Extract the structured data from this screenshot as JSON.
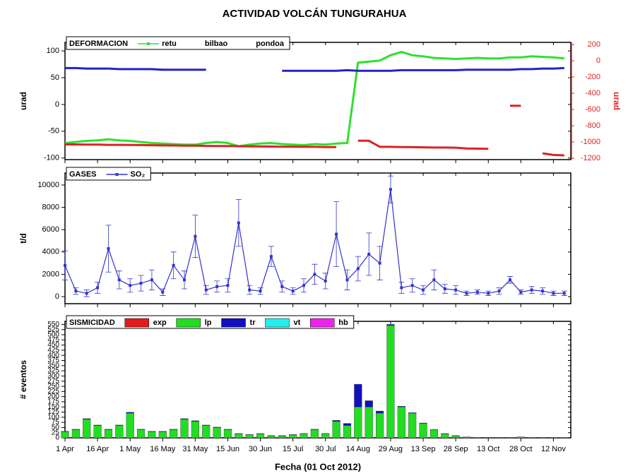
{
  "title": "ACTIVIDAD VOLCÁN TUNGURAHUA",
  "x_label": "Fecha (01 Oct 2012)",
  "chart_data": [
    {
      "type": "line",
      "title": "DEFORMACION",
      "y_label": "urad",
      "y2_label": "urad",
      "legend": "upper left",
      "x": [
        "1 Apr",
        "6 Apr",
        "11 Apr",
        "16 Apr",
        "21 Apr",
        "26 Apr",
        "1 May",
        "6 May",
        "11 May",
        "16 May",
        "21 May",
        "26 May",
        "31 May",
        "5 Jun",
        "10 Jun",
        "15 Jun",
        "20 Jun",
        "25 Jun",
        "30 Jun",
        "5 Jul",
        "10 Jul",
        "15 Jul",
        "20 Jul",
        "25 Jul",
        "30 Jul",
        "4 Aug",
        "9 Aug",
        "14 Aug",
        "19 Aug",
        "24 Aug",
        "29 Aug",
        "3 Sep",
        "8 Sep",
        "13 Sep",
        "18 Sep",
        "23 Sep",
        "28 Sep",
        "3 Oct",
        "8 Oct",
        "13 Oct",
        "18 Oct",
        "23 Oct",
        "28 Oct",
        "2 Nov",
        "7 Nov",
        "12 Nov",
        "17 Nov"
      ],
      "xlim": [
        "1 Apr",
        "20 Nov"
      ],
      "ylim": [
        -103,
        116
      ],
      "yticks": [
        -100,
        -50,
        0,
        50,
        100
      ],
      "y2lim": [
        -1217,
        226
      ],
      "y2ticks": [
        -1200,
        -1000,
        -800,
        -600,
        -400,
        -200,
        0,
        200
      ],
      "series": [
        {
          "name": "retu",
          "color": "#2ee02e",
          "values": [
            -72,
            -70,
            -68,
            -67,
            -65,
            -67,
            -68,
            -70,
            -72,
            -73,
            -74,
            -75,
            -75,
            -72,
            -70,
            -72,
            -78,
            -75,
            -73,
            -72,
            -74,
            -75,
            -76,
            -74,
            -75,
            -73,
            -72,
            78,
            80,
            82,
            92,
            98,
            92,
            90,
            87,
            86,
            85,
            86,
            87,
            86,
            86,
            88,
            88,
            90,
            89,
            88,
            86
          ]
        },
        {
          "name": "bilbao",
          "color": "#2222cc",
          "values": [
            68,
            68,
            67,
            67,
            67,
            66,
            66,
            66,
            66,
            65,
            65,
            65,
            65,
            65,
            null,
            null,
            null,
            null,
            null,
            null,
            63,
            63,
            63,
            63,
            63,
            63,
            64,
            63,
            63,
            63,
            63,
            64,
            64,
            64,
            64,
            64,
            64,
            65,
            65,
            65,
            65,
            65,
            66,
            66,
            67,
            67,
            68
          ]
        },
        {
          "name": "pondoa",
          "color": "#dd2222",
          "axis": "y2",
          "values": [
            -1030,
            -1030,
            -1032,
            -1033,
            -1035,
            -1035,
            -1036,
            -1038,
            -1040,
            -1042,
            -1043,
            -1045,
            -1046,
            -1048,
            -1050,
            -1050,
            -1052,
            -1054,
            -1055,
            -1056,
            -1058,
            -1058,
            -1060,
            -1060,
            -1062,
            -1062,
            null,
            -985,
            -985,
            -1060,
            -1060,
            -1062,
            -1064,
            -1066,
            -1068,
            -1068,
            -1070,
            -1080,
            -1082,
            -1085,
            null,
            -555,
            -555,
            null,
            -1140,
            -1160,
            -1165
          ]
        }
      ]
    },
    {
      "type": "line",
      "title": "GASES",
      "y_label": "t/d",
      "legend": "upper left",
      "x": [
        "1 Apr",
        "6 Apr",
        "11 Apr",
        "16 Apr",
        "21 Apr",
        "26 Apr",
        "1 May",
        "6 May",
        "11 May",
        "16 May",
        "21 May",
        "26 May",
        "31 May",
        "5 Jun",
        "10 Jun",
        "15 Jun",
        "20 Jun",
        "25 Jun",
        "30 Jun",
        "5 Jul",
        "10 Jul",
        "15 Jul",
        "20 Jul",
        "25 Jul",
        "30 Jul",
        "4 Aug",
        "9 Aug",
        "14 Aug",
        "19 Aug",
        "24 Aug",
        "29 Aug",
        "3 Sep",
        "8 Sep",
        "13 Sep",
        "18 Sep",
        "23 Sep",
        "28 Sep",
        "3 Oct",
        "8 Oct",
        "13 Oct",
        "18 Oct",
        "23 Oct",
        "28 Oct",
        "2 Nov",
        "7 Nov",
        "12 Nov",
        "17 Nov"
      ],
      "xlim": [
        "1 Apr",
        "20 Nov"
      ],
      "ylim": [
        -630,
        11070
      ],
      "yticks": [
        0,
        2000,
        4000,
        6000,
        8000,
        10000
      ],
      "series": [
        {
          "name": "SO₂",
          "color": "#3333cc",
          "values": [
            2800,
            500,
            300,
            800,
            4300,
            1500,
            1000,
            1200,
            1500,
            400,
            2800,
            1500,
            5400,
            600,
            900,
            1000,
            6600,
            600,
            500,
            3600,
            900,
            500,
            1000,
            2000,
            1400,
            5600,
            1500,
            2500,
            3800,
            3000,
            9600,
            800,
            1000,
            600,
            1500,
            700,
            600,
            300,
            400,
            300,
            500,
            1500,
            400,
            600,
            500,
            300,
            300
          ],
          "errors": [
            1300,
            300,
            300,
            500,
            2100,
            800,
            600,
            700,
            900,
            300,
            1200,
            800,
            1900,
            400,
            500,
            600,
            2100,
            400,
            300,
            900,
            500,
            300,
            600,
            900,
            700,
            2900,
            900,
            1100,
            1900,
            1500,
            1200,
            500,
            600,
            400,
            900,
            400,
            400,
            200,
            200,
            200,
            300,
            300,
            200,
            300,
            300,
            200,
            200
          ]
        }
      ]
    },
    {
      "type": "bar",
      "stacked": true,
      "title": "SISMICIDAD",
      "y_label": "# eventos",
      "legend": "upper left",
      "x": [
        "1 Apr",
        "6 Apr",
        "11 Apr",
        "16 Apr",
        "21 Apr",
        "26 Apr",
        "1 May",
        "6 May",
        "11 May",
        "16 May",
        "21 May",
        "26 May",
        "31 May",
        "5 Jun",
        "10 Jun",
        "15 Jun",
        "20 Jun",
        "25 Jun",
        "30 Jun",
        "5 Jul",
        "10 Jul",
        "15 Jul",
        "20 Jul",
        "25 Jul",
        "30 Jul",
        "4 Aug",
        "9 Aug",
        "14 Aug",
        "19 Aug",
        "24 Aug",
        "29 Aug",
        "3 Sep",
        "8 Sep",
        "13 Sep",
        "18 Sep",
        "23 Sep",
        "28 Sep",
        "3 Oct",
        "8 Oct",
        "13 Oct",
        "18 Oct",
        "23 Oct",
        "28 Oct",
        "2 Nov",
        "7 Nov",
        "12 Nov",
        "17 Nov"
      ],
      "xlim": [
        "1 Apr",
        "20 Nov"
      ],
      "xticks": [
        "1 Apr",
        "16 Apr",
        "1 May",
        "16 May",
        "31 May",
        "15 Jun",
        "30 Jun",
        "15 Jul",
        "30 Jul",
        "14 Aug",
        "29 Aug",
        "13 Sep",
        "28 Sep",
        "13 Oct",
        "28 Oct",
        "12 Nov"
      ],
      "ylim": [
        0,
        565
      ],
      "yticks": [
        0,
        25,
        50,
        75,
        100,
        125,
        150,
        175,
        200,
        225,
        250,
        275,
        300,
        325,
        350,
        375,
        400,
        425,
        450,
        475,
        500,
        525,
        550
      ],
      "series": [
        {
          "name": "exp",
          "color": "#e31a1c",
          "values": [
            0,
            0,
            0,
            0,
            0,
            0,
            0,
            0,
            0,
            0,
            0,
            0,
            0,
            0,
            0,
            0,
            0,
            0,
            0,
            0,
            0,
            0,
            0,
            0,
            0,
            0,
            0,
            0,
            0,
            0,
            0,
            0,
            0,
            0,
            0,
            0,
            0,
            0,
            0,
            0,
            0,
            0,
            0,
            0,
            0,
            0,
            0
          ]
        },
        {
          "name": "lp",
          "color": "#22dd22",
          "values": [
            30,
            40,
            90,
            60,
            40,
            60,
            120,
            40,
            30,
            30,
            40,
            90,
            80,
            60,
            50,
            40,
            20,
            15,
            20,
            10,
            10,
            15,
            20,
            40,
            20,
            80,
            60,
            150,
            150,
            120,
            545,
            150,
            120,
            70,
            40,
            20,
            10,
            5,
            3,
            3,
            2,
            2,
            5,
            3,
            2,
            1,
            1
          ]
        },
        {
          "name": "tr",
          "color": "#1010c0",
          "values": [
            2,
            2,
            3,
            2,
            2,
            2,
            4,
            2,
            2,
            2,
            2,
            3,
            3,
            2,
            2,
            2,
            1,
            1,
            1,
            1,
            1,
            1,
            1,
            2,
            1,
            5,
            10,
            110,
            30,
            10,
            5,
            3,
            2,
            2,
            1,
            1,
            1,
            0,
            0,
            0,
            0,
            0,
            0,
            0,
            0,
            0,
            0
          ]
        },
        {
          "name": "vt",
          "color": "#22eeee",
          "values": [
            0,
            0,
            0,
            0,
            0,
            0,
            0,
            0,
            0,
            0,
            0,
            0,
            0,
            0,
            0,
            0,
            0,
            0,
            0,
            0,
            0,
            0,
            0,
            0,
            0,
            0,
            0,
            0,
            0,
            0,
            0,
            0,
            0,
            0,
            0,
            0,
            0,
            0,
            0,
            0,
            0,
            0,
            0,
            0,
            0,
            0,
            0
          ]
        },
        {
          "name": "hb",
          "color": "#ee22ee",
          "values": [
            0,
            0,
            0,
            0,
            0,
            0,
            0,
            0,
            0,
            0,
            0,
            0,
            0,
            0,
            0,
            0,
            0,
            0,
            0,
            0,
            0,
            0,
            0,
            0,
            0,
            0,
            0,
            0,
            0,
            0,
            0,
            0,
            0,
            0,
            0,
            0,
            0,
            0,
            0,
            0,
            0,
            0,
            0,
            0,
            0,
            0,
            0
          ]
        }
      ]
    }
  ]
}
